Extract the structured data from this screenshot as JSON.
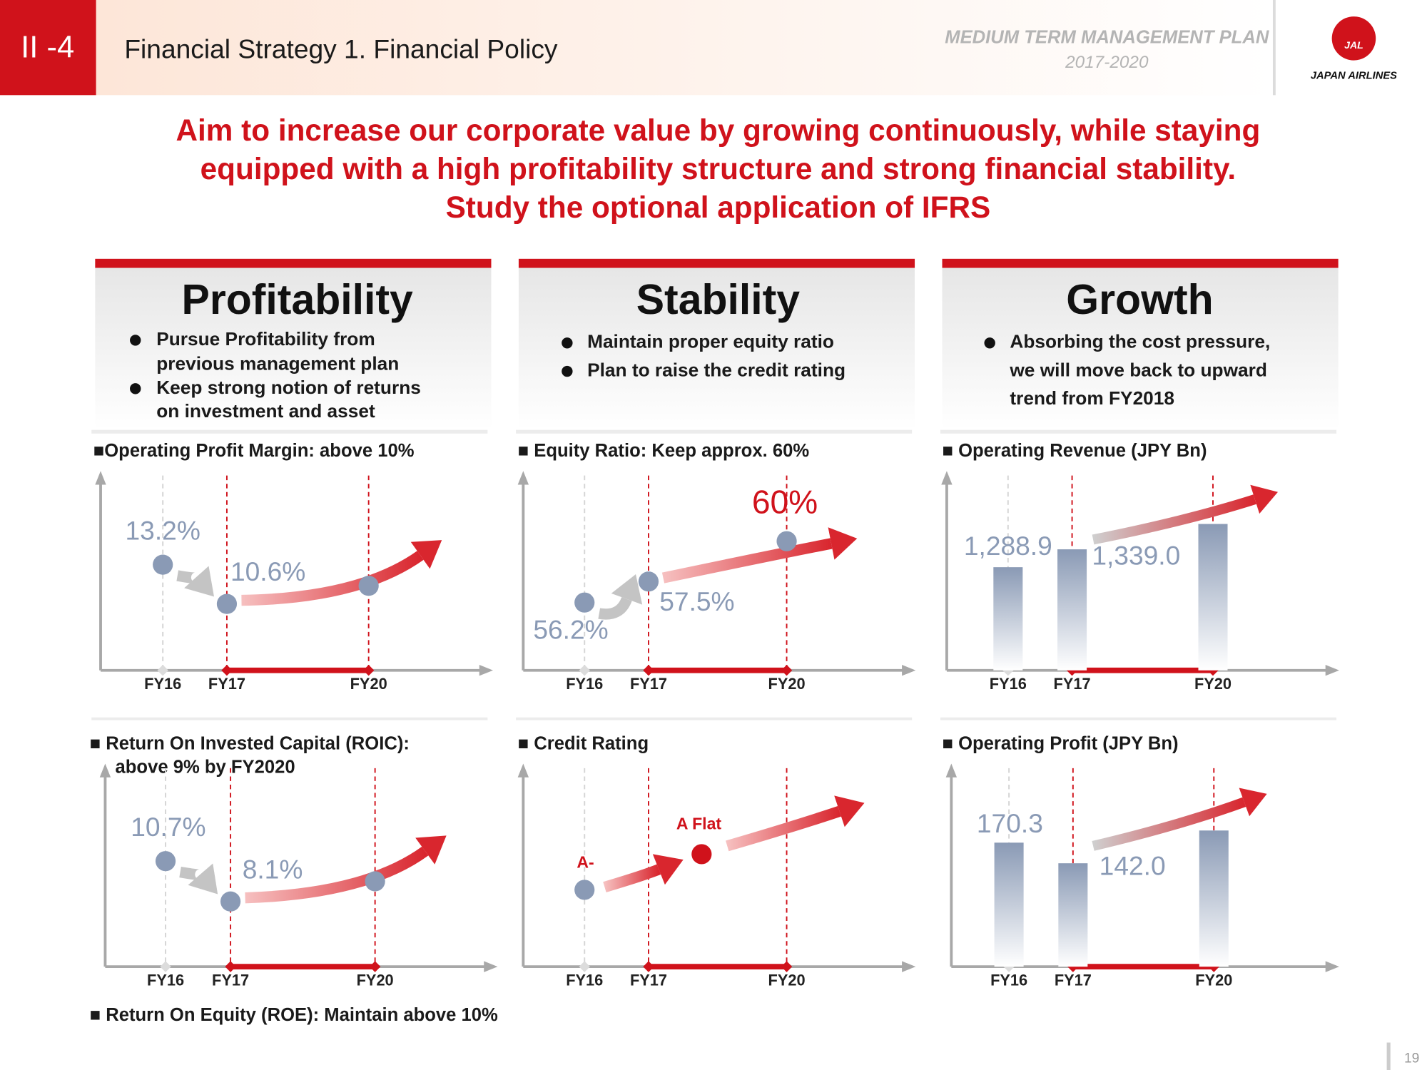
{
  "header": {
    "section": "II -4",
    "title": "Financial Strategy 1. Financial Policy",
    "plan": "MEDIUM TERM MANAGEMENT PLAN",
    "period": "2017-2020",
    "logo_mark": "JAL",
    "logo_text": "JAPAN AIRLINES"
  },
  "headline": [
    "Aim to increase our corporate value by growing continuously, while staying",
    "equipped with a high profitability structure and strong financial stability.",
    "Study the optional application of IFRS"
  ],
  "pillars": [
    {
      "title": "Profitability",
      "bullets": [
        [
          "Pursue Profitability from",
          "previous management plan"
        ],
        [
          "Keep strong notion of returns",
          "on investment and asset"
        ]
      ]
    },
    {
      "title": "Stability",
      "bullets": [
        [
          "Maintain proper equity ratio"
        ],
        [
          "Plan to raise the credit rating"
        ]
      ]
    },
    {
      "title": "Growth",
      "bullets": [
        [
          "Absorbing the cost pressure,",
          "we will move back to upward",
          "trend from FY2018"
        ]
      ]
    }
  ],
  "chart_data": [
    {
      "type": "line",
      "title": "■Operating Profit Margin: above 10%",
      "categories": [
        "FY16",
        "FY17",
        "FY20"
      ],
      "values": [
        13.2,
        10.6,
        11.8
      ],
      "value_labels": [
        "13.2%",
        "10.6%",
        null
      ],
      "ylim": [
        6.2,
        18.5
      ],
      "color": "#8a9ab5"
    },
    {
      "type": "line",
      "title": "■ Equity Ratio: Keep approx. 60%",
      "categories": [
        "FY16",
        "FY17",
        "FY20"
      ],
      "values": [
        56.2,
        57.5,
        60
      ],
      "value_labels": [
        "56.2%",
        "57.5%",
        "60%"
      ],
      "ylim": [
        52,
        63.5
      ],
      "color": "#8a9ab5"
    },
    {
      "type": "bar",
      "title": "■ Operating Revenue (JPY Bn)",
      "categories": [
        "FY16",
        "FY17",
        "FY20"
      ],
      "values": [
        1288.9,
        1339.0,
        1410
      ],
      "value_labels": [
        "1,288.9",
        "1,339.0",
        null
      ],
      "ylim": [
        1000,
        1520
      ],
      "color": "#8a9ab5"
    },
    {
      "type": "line",
      "title": "■ Return On Invested Capital (ROIC):",
      "subtitle": "above 9% by FY2020",
      "categories": [
        "FY16",
        "FY17",
        "FY20"
      ],
      "values": [
        10.7,
        8.1,
        9.4
      ],
      "value_labels": [
        "10.7%",
        "8.1%",
        null
      ],
      "ylim": [
        3.9,
        16.1
      ],
      "color": "#8a9ab5"
    },
    {
      "type": "rating",
      "title": "■ Credit Rating",
      "categories": [
        "FY16",
        "FY17",
        "FY20"
      ],
      "labels": [
        "A-",
        "A Flat"
      ],
      "color": "#d0121b"
    },
    {
      "type": "bar",
      "title": "■ Operating Profit (JPY Bn)",
      "categories": [
        "FY16",
        "FY17",
        "FY20"
      ],
      "values": [
        170.3,
        142.0,
        187
      ],
      "value_labels": [
        "170.3",
        "142.0",
        null
      ],
      "ylim": [
        0,
        260
      ],
      "color": "#8a9ab5"
    }
  ],
  "footnote": "■ Return On Equity (ROE): Maintain above 10%",
  "page_number": 19
}
